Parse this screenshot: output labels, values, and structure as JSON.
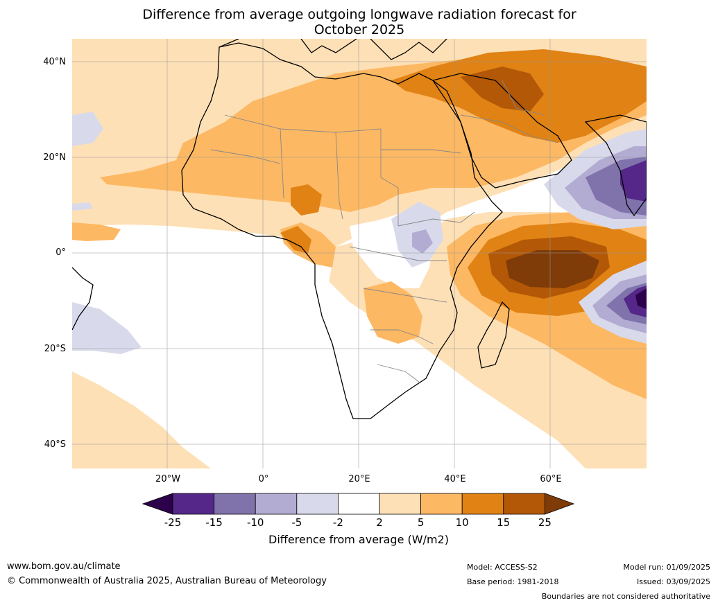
{
  "title_line1": "Difference from average outgoing longwave radiation forecast for",
  "title_line2": "October 2025",
  "lat_ticks": [
    "40°N",
    "20°N",
    "0°",
    "20°S",
    "40°S"
  ],
  "lon_ticks": [
    "20°W",
    "0°",
    "20°E",
    "40°E",
    "60°E"
  ],
  "colorbar": {
    "ticks": [
      "-25",
      "-15",
      "-10",
      "-5",
      "-2",
      "2",
      "5",
      "10",
      "15",
      "25"
    ],
    "colors": [
      "#2d004b",
      "#542788",
      "#8073ac",
      "#b2abd2",
      "#d8daeb",
      "#ffffff",
      "#fee0b6",
      "#fdb863",
      "#e08214",
      "#b35806",
      "#7f3b08"
    ],
    "label": "Difference from average (W/m2)"
  },
  "footer": {
    "url": "www.bom.gov.au/climate",
    "copyright": "© Commonwealth of Australia 2025, Australian Bureau of Meteorology",
    "model": "Model: ACCESS-S2",
    "base_period": "Base period: 1981-2018",
    "model_run": "Model run: 01/09/2025",
    "issued": "Issued: 03/09/2025",
    "disclaimer": "Boundaries are not considered authoritative"
  }
}
